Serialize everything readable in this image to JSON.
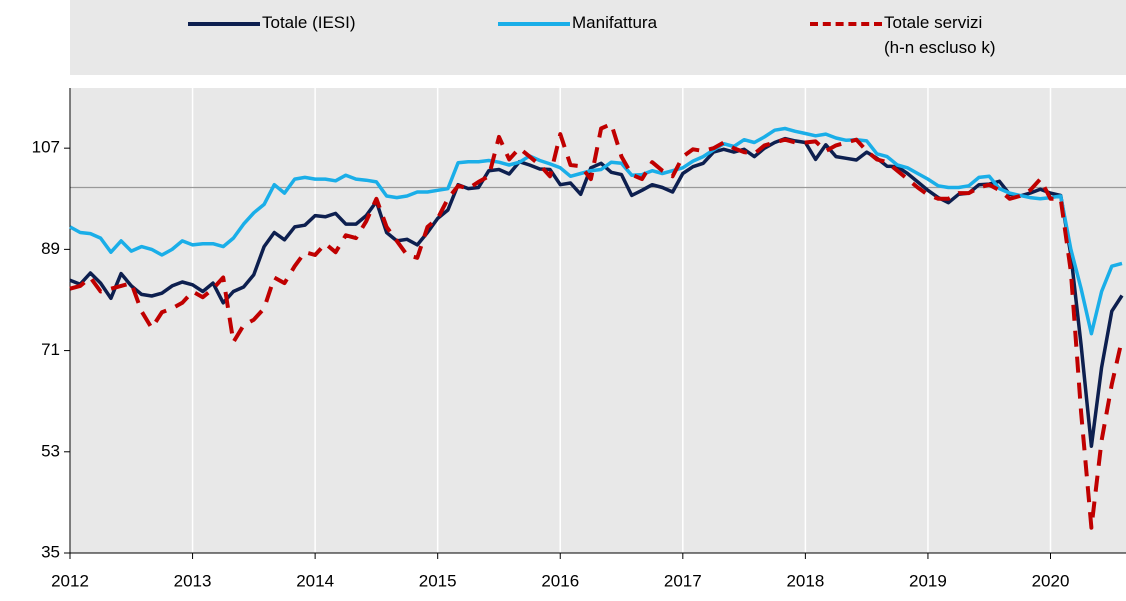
{
  "chart_data": {
    "type": "line",
    "x": [
      "2012-01",
      "2012-02",
      "2012-03",
      "2012-04",
      "2012-05",
      "2012-06",
      "2012-07",
      "2012-08",
      "2012-09",
      "2012-10",
      "2012-11",
      "2012-12",
      "2013-01",
      "2013-02",
      "2013-03",
      "2013-04",
      "2013-05",
      "2013-06",
      "2013-07",
      "2013-08",
      "2013-09",
      "2013-10",
      "2013-11",
      "2013-12",
      "2014-01",
      "2014-02",
      "2014-03",
      "2014-04",
      "2014-05",
      "2014-06",
      "2014-07",
      "2014-08",
      "2014-09",
      "2014-10",
      "2014-11",
      "2014-12",
      "2015-01",
      "2015-02",
      "2015-03",
      "2015-04",
      "2015-05",
      "2015-06",
      "2015-07",
      "2015-08",
      "2015-09",
      "2015-10",
      "2015-11",
      "2015-12",
      "2016-01",
      "2016-02",
      "2016-03",
      "2016-04",
      "2016-05",
      "2016-06",
      "2016-07",
      "2016-08",
      "2016-09",
      "2016-10",
      "2016-11",
      "2016-12",
      "2017-01",
      "2017-02",
      "2017-03",
      "2017-04",
      "2017-05",
      "2017-06",
      "2017-07",
      "2017-08",
      "2017-09",
      "2017-10",
      "2017-11",
      "2017-12",
      "2018-01",
      "2018-02",
      "2018-03",
      "2018-04",
      "2018-05",
      "2018-06",
      "2018-07",
      "2018-08",
      "2018-09",
      "2018-10",
      "2018-11",
      "2018-12",
      "2019-01",
      "2019-02",
      "2019-03",
      "2019-04",
      "2019-05",
      "2019-06",
      "2019-07",
      "2019-08",
      "2019-09",
      "2019-10",
      "2019-11",
      "2019-12",
      "2020-01",
      "2020-02",
      "2020-03",
      "2020-04",
      "2020-05",
      "2020-06",
      "2020-07",
      "2020-08"
    ],
    "series": [
      {
        "name": "Totale (IESI)",
        "color": "#0d1f4f",
        "dash": false,
        "values": [
          83.5,
          82.8,
          84.8,
          83,
          80.3,
          84.7,
          82.5,
          81,
          80.7,
          81.2,
          82.5,
          83.2,
          82.7,
          81.5,
          83,
          79.5,
          81.5,
          82.3,
          84.5,
          89.5,
          92,
          90.7,
          93,
          93.3,
          95,
          94.8,
          95.4,
          93.5,
          93.5,
          95,
          97.5,
          92,
          90.5,
          90.8,
          89.8,
          92,
          94.5,
          96,
          100.5,
          99.8,
          100,
          103,
          103.2,
          102.4,
          104.6,
          104,
          103.3,
          103.2,
          100.5,
          100.8,
          98.8,
          103.5,
          104.3,
          102.7,
          102.3,
          98.6,
          99.5,
          100.5,
          100,
          99.2,
          102.5,
          103.7,
          104.3,
          106.3,
          106.8,
          106.3,
          106.8,
          105.5,
          107,
          108,
          108.7,
          108.3,
          108,
          105,
          107.6,
          105.5,
          105.2,
          104.9,
          106.3,
          105.2,
          103.8,
          103.7,
          102.5,
          101,
          99.5,
          98.2,
          97.3,
          98.8,
          99,
          100.5,
          100.6,
          101.1,
          98.8,
          98.5,
          99,
          99.7,
          99,
          98.6,
          88,
          72,
          54,
          68,
          78,
          80.8
        ]
      },
      {
        "name": "Manifattura",
        "color": "#1aaee8",
        "dash": false,
        "values": [
          93,
          92,
          91.8,
          91,
          88.5,
          90.5,
          88.7,
          89.5,
          89,
          88,
          89,
          90.5,
          89.8,
          90,
          90,
          89.5,
          91,
          93.5,
          95.5,
          97,
          100.5,
          99,
          101.5,
          101.8,
          101.5,
          101.5,
          101.2,
          102.2,
          101.5,
          101.3,
          101,
          98.5,
          98.2,
          98.5,
          99.2,
          99.2,
          99.5,
          99.8,
          104.4,
          104.6,
          104.6,
          104.8,
          104.5,
          104,
          104.5,
          105.6,
          104.8,
          104.2,
          103.5,
          102,
          102.5,
          103,
          103.2,
          104.5,
          104.3,
          102.2,
          102.3,
          103,
          102.5,
          103,
          103.5,
          104.7,
          105.5,
          106.7,
          107.8,
          107.3,
          108.5,
          108,
          109,
          110.2,
          110.5,
          110,
          109.6,
          109.2,
          109.5,
          108.8,
          108.4,
          108.5,
          108.3,
          106,
          105.5,
          104,
          103.5,
          102.5,
          101.5,
          100.3,
          100,
          100,
          100.3,
          101.8,
          102,
          99.8,
          99,
          98.6,
          98.2,
          98,
          98.2,
          98.5,
          89,
          82,
          74,
          81.5,
          86,
          86.5
        ]
      },
      {
        "name": "Totale servizi\n(h-n escluso k)",
        "color": "#c00000",
        "dash": true,
        "values": [
          82,
          82.5,
          84,
          81.5,
          82,
          82.5,
          83,
          78,
          75,
          77.8,
          78.5,
          79.5,
          81.5,
          80.5,
          82,
          84,
          72.5,
          75.5,
          76.5,
          78.5,
          84,
          83,
          86,
          88.5,
          88,
          90,
          88.5,
          91.5,
          91,
          94,
          98,
          93,
          90.5,
          88,
          87.5,
          93,
          94.5,
          98,
          100.3,
          99.8,
          101,
          102,
          109,
          105,
          107,
          105.5,
          104,
          102,
          109.5,
          104,
          103.8,
          101.5,
          110.5,
          111.3,
          105.5,
          102.3,
          101.5,
          104.5,
          103,
          102,
          105.5,
          106.8,
          106.5,
          107,
          108,
          107,
          106.3,
          106,
          107.5,
          108,
          108.5,
          108,
          108,
          108.2,
          106.5,
          107.5,
          108,
          108.5,
          106.5,
          105,
          104.5,
          103,
          101.5,
          100,
          98.7,
          98,
          98,
          99,
          99,
          100,
          100.5,
          99.5,
          98,
          98.5,
          99.5,
          101.5,
          98,
          98,
          85,
          60,
          39.5,
          55,
          65,
          73
        ]
      }
    ],
    "xlim": [
      "2012-01",
      "2020-08"
    ],
    "xticks": [
      2012,
      2013,
      2014,
      2015,
      2016,
      2017,
      2018,
      2019,
      2020
    ],
    "ylim": [
      35,
      117.7
    ],
    "yticks": [
      35,
      53,
      71,
      89,
      107
    ],
    "reference_line": 100,
    "grid": true
  }
}
